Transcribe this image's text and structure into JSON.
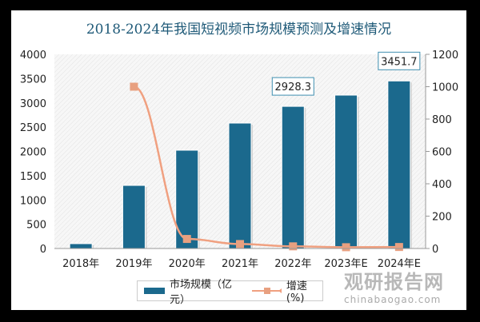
{
  "chart_data": {
    "type": "bar",
    "title": "2018-2024年我国短视频市场规模预测及增速情况",
    "categories": [
      "2018年",
      "2019年",
      "2020年",
      "2021年",
      "2022年",
      "2023年E",
      "2024年E"
    ],
    "series": [
      {
        "name": "市场规模（亿元）",
        "type": "bar",
        "axis": "left",
        "color": "#1b698d",
        "values": [
          100,
          1300,
          2025,
          2584,
          2928.3,
          3160,
          3451.7
        ]
      },
      {
        "name": "增速(%)",
        "type": "line",
        "axis": "right",
        "color": "#f0a080",
        "values": [
          null,
          1000,
          59,
          27.6,
          13.3,
          7.9,
          9.2
        ]
      }
    ],
    "data_labels": [
      {
        "category": "2022年",
        "text": "2928.3"
      },
      {
        "category": "2024年E",
        "text": "3451.7"
      }
    ],
    "ylim": [
      0,
      4000
    ],
    "yticks": [
      "0",
      "500",
      "1000",
      "1500",
      "2000",
      "2500",
      "3000",
      "3500",
      "4000"
    ],
    "y2lim": [
      0,
      1200
    ],
    "y2ticks": [
      "0",
      "200",
      "400",
      "600",
      "800",
      "1000",
      "1200"
    ],
    "legend": "bottom",
    "grid": false
  },
  "watermark": {
    "name": "观研报告网",
    "url": "chinabaogao.com"
  }
}
